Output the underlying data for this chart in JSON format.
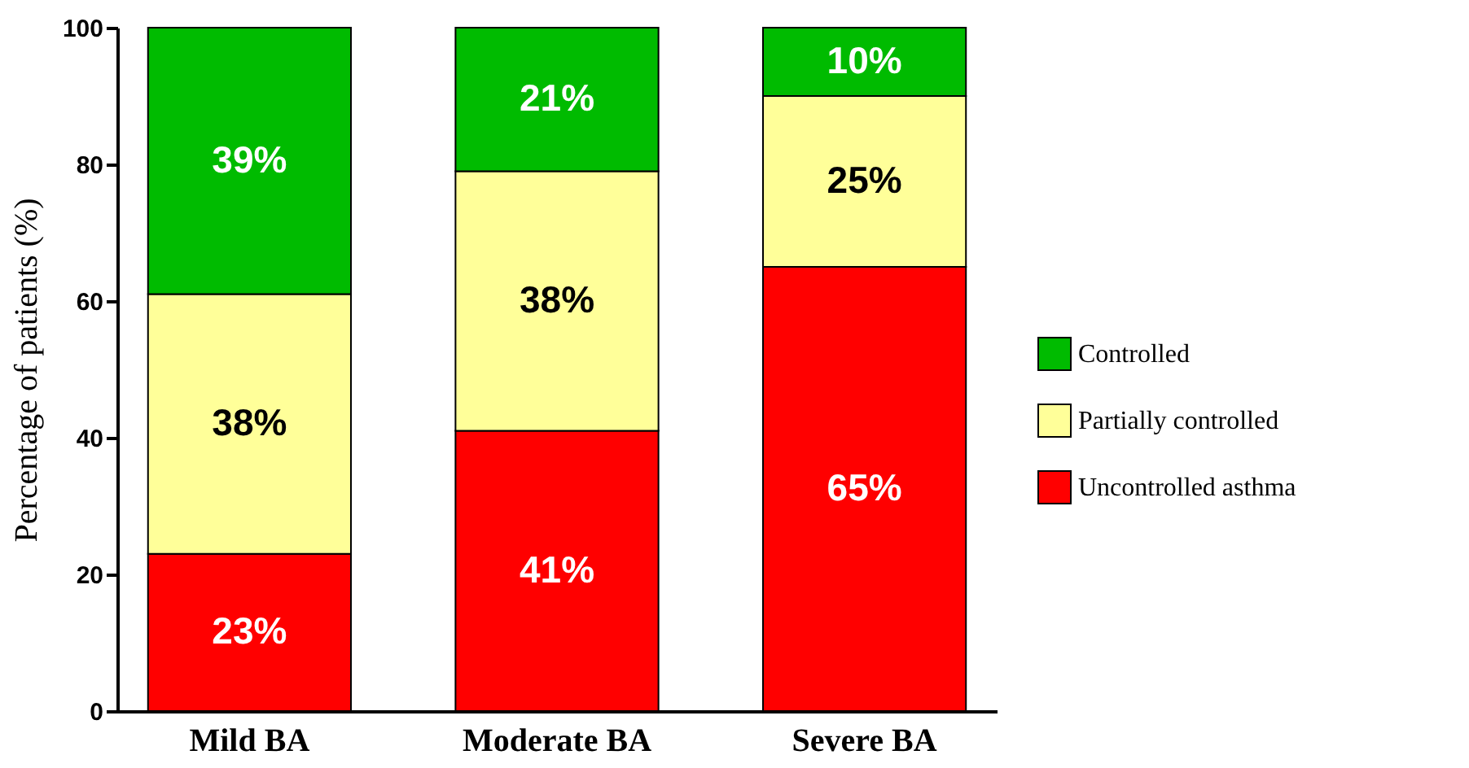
{
  "chart_data": {
    "type": "bar",
    "stacked": true,
    "ylabel": "Percentage of patients (%)",
    "categories": [
      "Mild BA",
      "Moderate BA",
      "Severe BA"
    ],
    "series": [
      {
        "name": "Uncontrolled asthma",
        "color": "#ff0000",
        "values": [
          23,
          41,
          65
        ],
        "value_labels": [
          "23%",
          "41%",
          "65%"
        ]
      },
      {
        "name": "Partially controlled",
        "color": "#ffff99",
        "values": [
          38,
          38,
          25
        ],
        "value_labels": [
          "38%",
          "38%",
          "25%"
        ]
      },
      {
        "name": "Controlled",
        "color": "#00bb00",
        "values": [
          39,
          21,
          10
        ],
        "value_labels": [
          "39%",
          "21%",
          "10%"
        ]
      }
    ],
    "ylim": [
      0,
      100
    ],
    "yticks": [
      0,
      20,
      40,
      60,
      80,
      100
    ],
    "legend": "right"
  }
}
